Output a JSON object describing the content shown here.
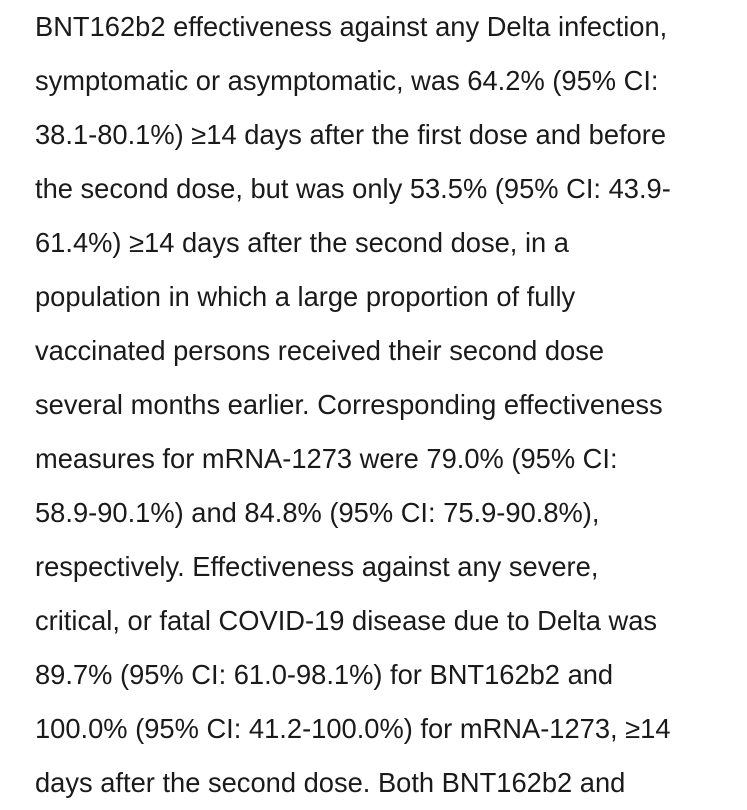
{
  "paragraph": {
    "line1": "BNT162b2 effectiveness against any Delta infection,",
    "line2": "symptomatic or asymptomatic, was 64.2% (95% CI:",
    "line3": "38.1-80.1%) ≥14 days after the first dose and before",
    "line4_a": "the second dose, but was only ",
    "line4_hl": "53.5%",
    "line4_b": " (95% CI: 43.9-",
    "line5_a": "61.4%) ",
    "line5_hl": "≥14 days after the second dose",
    "line5_b": ", in a",
    "line6": "population in which a large proportion of fully",
    "line7_a": "vaccinated persons ",
    "line7_hl": "received their second dose",
    "line8_hl": "several months earlie",
    "line8_b": "r. Corresponding effectiveness",
    "line9": "measures for mRNA-1273 were 79.0% (95% CI:",
    "line10_a": "58.9-90.1%) and ",
    "line10_hl": "84.8%",
    "line10_b": " (95% CI: 75.9-90.8%),",
    "line11": "respectively. Effectiveness against any severe,",
    "line12": "critical, or fatal COVID-19 disease due to Delta was",
    "line13": "89.7% (95% CI: 61.0-98.1%) for BNT162b2 and",
    "line14": "100.0% (95% CI: 41.2-100.0%) for mRNA-1273, ≥14",
    "line15": "days after the second dose. Both BNT162b2 and"
  },
  "highlight_color": "#f4a3a6"
}
